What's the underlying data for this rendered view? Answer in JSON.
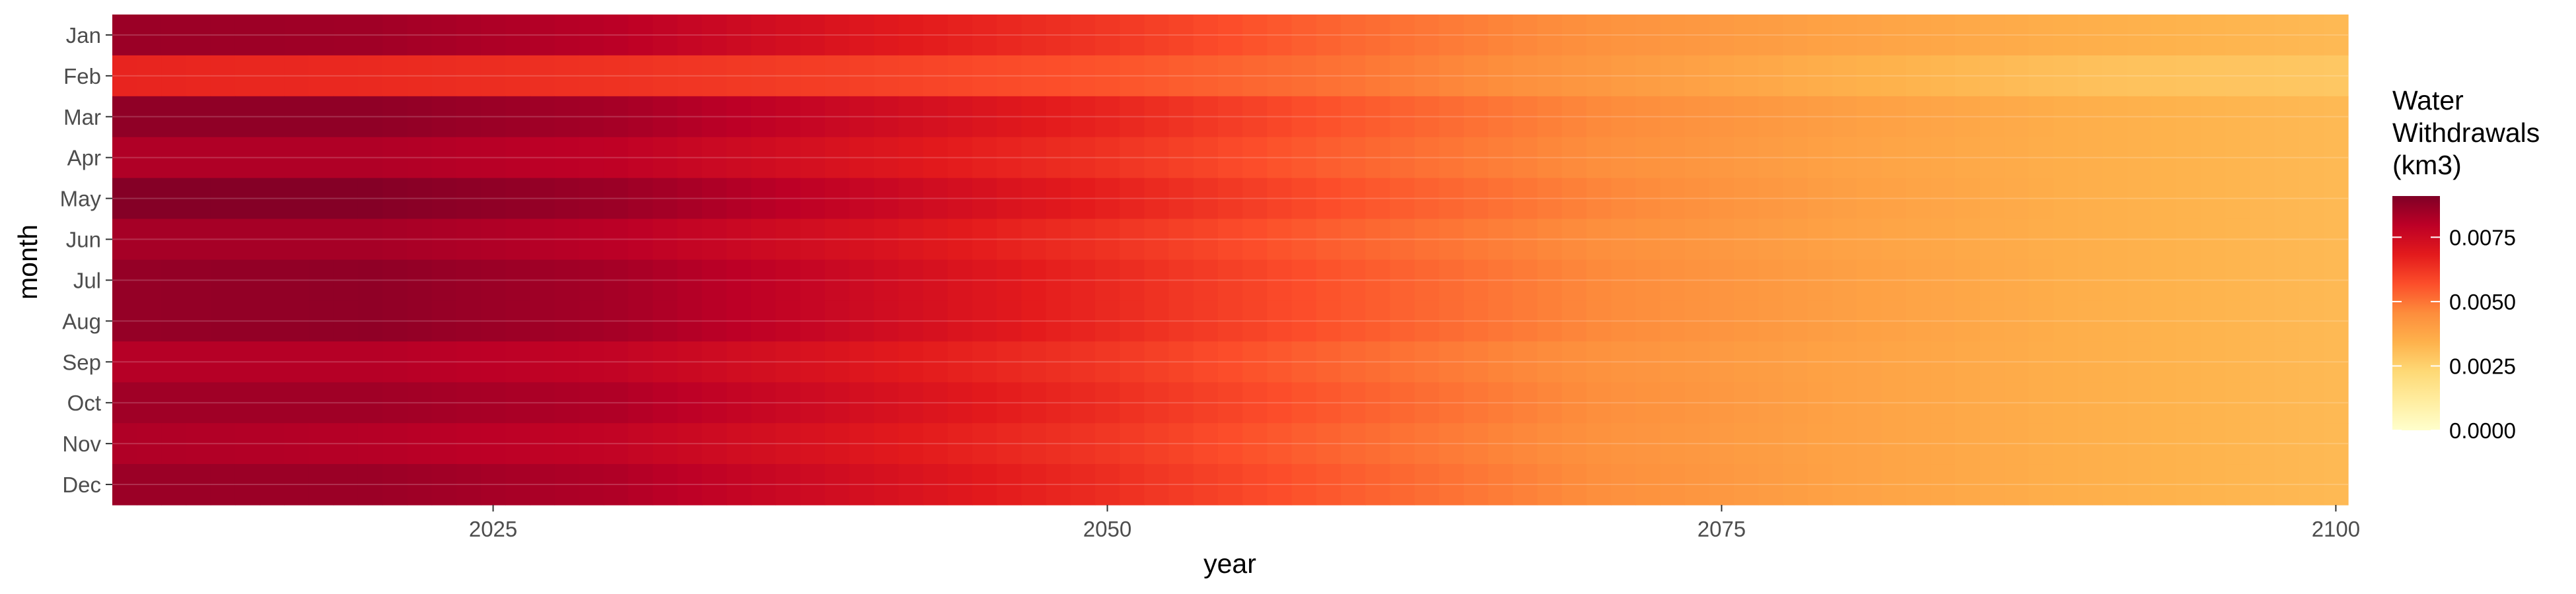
{
  "chart_data": {
    "type": "heatmap",
    "title": "",
    "xlabel": "year",
    "ylabel": "month",
    "x_start": 2010,
    "x_end": 2100,
    "x_ticks": [
      2025,
      2050,
      2075,
      2100
    ],
    "months": [
      "Jan",
      "Feb",
      "Mar",
      "Apr",
      "May",
      "Jun",
      "Jul",
      "Aug",
      "Sep",
      "Oct",
      "Nov",
      "Dec"
    ],
    "month_anchor_values": {
      "years": [
        2010,
        2020,
        2030,
        2040,
        2050,
        2060,
        2070,
        2080,
        2090,
        2100
      ],
      "values": [
        [
          0.0086,
          0.0085,
          0.008,
          0.007,
          0.0062,
          0.0052,
          0.0044,
          0.0039,
          0.0035,
          0.0032
        ],
        [
          0.0066,
          0.0065,
          0.0063,
          0.006,
          0.0056,
          0.005,
          0.0042,
          0.0035,
          0.003,
          0.0028
        ],
        [
          0.0088,
          0.0088,
          0.0084,
          0.0075,
          0.0066,
          0.0055,
          0.0046,
          0.004,
          0.0035,
          0.0032
        ],
        [
          0.0082,
          0.0082,
          0.0079,
          0.0071,
          0.0063,
          0.0053,
          0.0045,
          0.0039,
          0.0035,
          0.0032
        ],
        [
          0.009,
          0.009,
          0.0086,
          0.0077,
          0.0067,
          0.0056,
          0.0047,
          0.004,
          0.0035,
          0.0032
        ],
        [
          0.0084,
          0.0084,
          0.008,
          0.0072,
          0.0063,
          0.0053,
          0.0045,
          0.0039,
          0.0035,
          0.0032
        ],
        [
          0.0087,
          0.0088,
          0.0084,
          0.0075,
          0.0065,
          0.0055,
          0.0046,
          0.004,
          0.0035,
          0.0032
        ],
        [
          0.0087,
          0.0088,
          0.0084,
          0.0075,
          0.0065,
          0.0055,
          0.0046,
          0.004,
          0.0035,
          0.0032
        ],
        [
          0.0081,
          0.0081,
          0.0078,
          0.007,
          0.0062,
          0.0052,
          0.0044,
          0.0039,
          0.0035,
          0.0032
        ],
        [
          0.0085,
          0.0085,
          0.0082,
          0.0073,
          0.0064,
          0.0054,
          0.0045,
          0.0039,
          0.0035,
          0.0032
        ],
        [
          0.0082,
          0.0081,
          0.0078,
          0.007,
          0.0062,
          0.0052,
          0.0044,
          0.0039,
          0.0035,
          0.0032
        ],
        [
          0.0086,
          0.0086,
          0.0082,
          0.0073,
          0.0064,
          0.0054,
          0.0045,
          0.0039,
          0.0035,
          0.0032
        ]
      ]
    },
    "legend": {
      "title_lines": [
        "Water",
        "Withdrawals",
        "(km3)"
      ],
      "min": 0.0,
      "max": 0.0091,
      "ticks": [
        0.0,
        0.0025,
        0.005,
        0.0075
      ],
      "tick_labels": [
        "0.0000",
        "0.0025",
        "0.0050",
        "0.0075"
      ],
      "placement": "right"
    },
    "colormap": {
      "name": "YlOrRd",
      "stops": [
        "#ffffcc",
        "#ffeda0",
        "#fed976",
        "#feb24c",
        "#fd8d3c",
        "#fc4e2a",
        "#e31a1c",
        "#bd0026",
        "#800026"
      ]
    },
    "grid": true
  }
}
